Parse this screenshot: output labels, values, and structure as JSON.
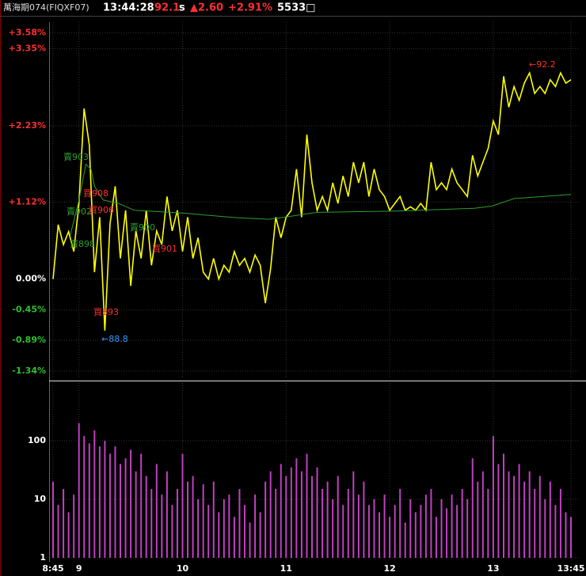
{
  "header": {
    "symbol": "萬海期074(FIQXF07)",
    "time": "13:44:28",
    "price": "92.1",
    "flag": "s",
    "change": "▲2.60",
    "change_pct": "+2.91%",
    "volume": "5533□"
  },
  "chart_data": [
    {
      "type": "line",
      "ylim": [
        -1.42,
        3.68
      ],
      "yticks": [
        {
          "value": 3.58,
          "label": "+3.58%"
        },
        {
          "value": 3.35,
          "label": "+3.35%"
        },
        {
          "value": 2.23,
          "label": "+2.23%"
        },
        {
          "value": 1.12,
          "label": "+1.12%"
        },
        {
          "value": 0,
          "label": "0.00%"
        },
        {
          "value": -0.45,
          "label": "-0.45%"
        },
        {
          "value": -0.89,
          "label": "-0.89%"
        },
        {
          "value": -1.34,
          "label": "-1.34%"
        }
      ],
      "xlim": [
        525,
        825
      ],
      "grid": true,
      "series": [
        {
          "color": "#ffff00",
          "x": [
            525,
            528,
            531,
            534,
            537,
            540,
            543,
            546,
            549,
            552,
            555,
            558,
            561,
            564,
            567,
            570,
            573,
            576,
            579,
            582,
            585,
            588,
            591,
            594,
            597,
            600,
            603,
            606,
            609,
            612,
            615,
            618,
            621,
            624,
            627,
            630,
            633,
            636,
            639,
            642,
            645,
            648,
            651,
            654,
            657,
            660,
            663,
            666,
            669,
            672,
            675,
            678,
            681,
            684,
            687,
            690,
            693,
            696,
            699,
            702,
            705,
            708,
            711,
            714,
            717,
            720,
            723,
            726,
            729,
            732,
            735,
            738,
            741,
            744,
            747,
            750,
            753,
            756,
            759,
            762,
            765,
            768,
            771,
            774,
            777,
            780,
            783,
            786,
            789,
            792,
            795,
            798,
            801,
            804,
            807,
            810,
            813,
            816,
            819,
            822,
            825
          ],
          "values": [
            0,
            0.79,
            0.5,
            0.69,
            0.4,
            1.1,
            2.48,
            1.95,
            0.1,
            0.9,
            -0.75,
            0.8,
            1.35,
            0.3,
            1.0,
            -0.1,
            0.7,
            0.3,
            1.0,
            0.2,
            0.7,
            0.5,
            1.2,
            0.7,
            1.0,
            0.4,
            0.9,
            0.3,
            0.6,
            0.1,
            0,
            0.3,
            0,
            0.2,
            0.1,
            0.4,
            0.2,
            0.3,
            0.1,
            0.35,
            0.2,
            -0.35,
            0.15,
            0.9,
            0.6,
            0.9,
            1.0,
            1.6,
            0.9,
            2.1,
            1.4,
            1.0,
            1.2,
            1.0,
            1.4,
            1.1,
            1.5,
            1.2,
            1.7,
            1.4,
            1.7,
            1.2,
            1.6,
            1.3,
            1.2,
            1.0,
            1.1,
            1.2,
            1.0,
            1.05,
            1.0,
            1.1,
            1.0,
            1.7,
            1.3,
            1.4,
            1.3,
            1.6,
            1.4,
            1.3,
            1.2,
            1.8,
            1.5,
            1.7,
            1.9,
            2.3,
            2.1,
            2.95,
            2.5,
            2.8,
            2.6,
            2.85,
            3.0,
            2.7,
            2.8,
            2.7,
            2.9,
            2.8,
            3.0,
            2.85,
            2.9
          ]
        },
        {
          "color": "#2e9e2e",
          "x": [
            535,
            540,
            544,
            547,
            549,
            554,
            563,
            572,
            600,
            632,
            650,
            659,
            678,
            724,
            769,
            779,
            792,
            825
          ],
          "values": [
            0.64,
            1.15,
            1.67,
            1.6,
            1.35,
            1.15,
            1.1,
            1.0,
            0.96,
            0.89,
            0.87,
            0.9,
            0.97,
            0.99,
            1.03,
            1.06,
            1.17,
            1.23
          ]
        }
      ],
      "annotations": [
        "賣903",
        "賣902",
        "賣898",
        "買908",
        "買906",
        "賣900",
        "買901",
        "買893",
        "←92.2",
        "←88.8"
      ]
    },
    {
      "type": "bar",
      "log_scale": true,
      "ylim": [
        1,
        1000
      ],
      "yticks": [
        1,
        10,
        100
      ],
      "xlim": [
        525,
        825
      ],
      "xticks": [
        {
          "value": 525,
          "label": "8:45"
        },
        {
          "value": 540,
          "label": "9"
        },
        {
          "value": 600,
          "label": "10"
        },
        {
          "value": 660,
          "label": "11"
        },
        {
          "value": 720,
          "label": "12"
        },
        {
          "value": 780,
          "label": "13"
        },
        {
          "value": 825,
          "label": "13:45"
        }
      ],
      "grid": true,
      "color": "#c040c0",
      "x": [
        525,
        528,
        531,
        534,
        537,
        540,
        543,
        546,
        549,
        552,
        555,
        558,
        561,
        564,
        567,
        570,
        573,
        576,
        579,
        582,
        585,
        588,
        591,
        594,
        597,
        600,
        603,
        606,
        609,
        612,
        615,
        618,
        621,
        624,
        627,
        630,
        633,
        636,
        639,
        642,
        645,
        648,
        651,
        654,
        657,
        660,
        663,
        666,
        669,
        672,
        675,
        678,
        681,
        684,
        687,
        690,
        693,
        696,
        699,
        702,
        705,
        708,
        711,
        714,
        717,
        720,
        723,
        726,
        729,
        732,
        735,
        738,
        741,
        744,
        747,
        750,
        753,
        756,
        759,
        762,
        765,
        768,
        771,
        774,
        777,
        780,
        783,
        786,
        789,
        792,
        795,
        798,
        801,
        804,
        807,
        810,
        813,
        816,
        819,
        822,
        825
      ],
      "values": [
        20,
        8,
        15,
        6,
        12,
        200,
        120,
        90,
        150,
        80,
        100,
        60,
        80,
        40,
        50,
        70,
        30,
        60,
        25,
        15,
        40,
        12,
        30,
        8,
        15,
        60,
        20,
        25,
        10,
        18,
        8,
        20,
        6,
        10,
        12,
        5,
        15,
        8,
        4,
        12,
        6,
        20,
        30,
        15,
        40,
        25,
        35,
        50,
        30,
        60,
        25,
        35,
        15,
        20,
        10,
        25,
        8,
        15,
        30,
        12,
        20,
        8,
        10,
        6,
        12,
        5,
        8,
        15,
        4,
        10,
        6,
        8,
        12,
        15,
        5,
        10,
        7,
        12,
        8,
        15,
        10,
        50,
        20,
        30,
        15,
        120,
        40,
        60,
        30,
        25,
        40,
        20,
        30,
        15,
        25,
        10,
        20,
        8,
        15,
        6,
        5
      ]
    }
  ]
}
